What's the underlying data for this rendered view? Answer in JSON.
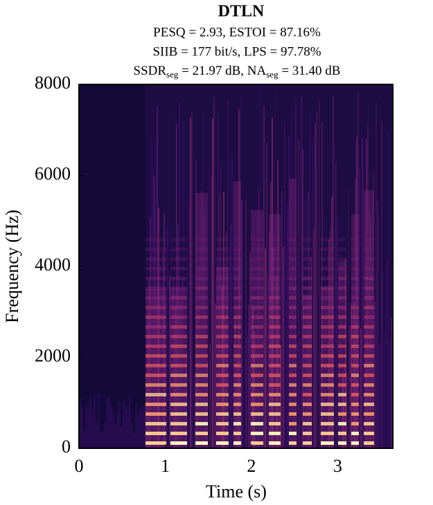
{
  "chart_data": {
    "type": "spectrogram",
    "title": "DTLN",
    "subtitle": [
      "PESQ = 2.93, ESTOI = 87.16%",
      "SIIB = 177 bit/s, LPS = 97.78%"
    ],
    "subtitle_subscripted": [
      "SSDR",
      "seg",
      " = 21.97 dB, NA",
      "seg",
      " = 31.40 dB"
    ],
    "x_label": "Time (s)",
    "y_label": "Frequency (Hz)",
    "xlim": [
      0,
      3.64
    ],
    "xticks": [
      0,
      1,
      2,
      3
    ],
    "ylim": [
      0,
      8000
    ],
    "yticks": [
      0,
      2000,
      4000,
      6000,
      8000
    ]
  }
}
